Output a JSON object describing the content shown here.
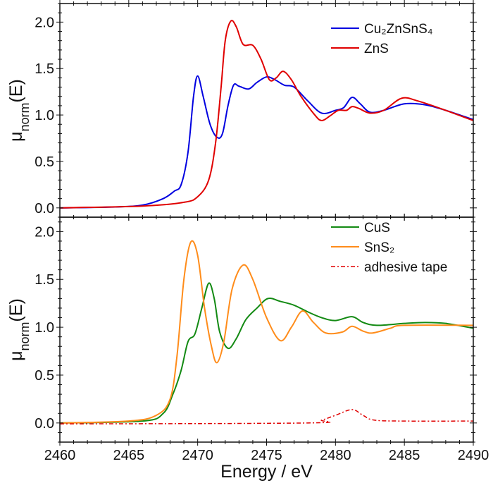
{
  "chart_data": [
    {
      "type": "line",
      "panel": "top",
      "ylabel": {
        "base": "μ",
        "sub": "norm",
        "rest": "(E)"
      },
      "xlim": [
        2460,
        2490
      ],
      "ylim": [
        -0.1,
        2.2
      ],
      "yticks": [
        0.0,
        0.5,
        1.0,
        1.5,
        2.0
      ],
      "ytick_labels": [
        "0.0",
        "0.5",
        "1.0",
        "1.5",
        "2.0"
      ],
      "legend_position": "top-right",
      "grid": false,
      "series": [
        {
          "name": "Cu₂ZnSnS₄",
          "color": "#0000e0",
          "dash": "solid",
          "x": [
            2460,
            2464,
            2466,
            2467.5,
            2468.3,
            2468.8,
            2469.3,
            2469.7,
            2470,
            2470.4,
            2470.9,
            2471.4,
            2471.8,
            2472.2,
            2472.6,
            2473,
            2473.7,
            2474.3,
            2475,
            2475.6,
            2476.3,
            2477,
            2478,
            2479,
            2480,
            2480.6,
            2481.2,
            2481.8,
            2482.5,
            2483.5,
            2485,
            2486.5,
            2488,
            2490
          ],
          "y": [
            0,
            0.01,
            0.03,
            0.1,
            0.18,
            0.25,
            0.6,
            1.2,
            1.42,
            1.2,
            0.9,
            0.76,
            0.8,
            1.1,
            1.32,
            1.31,
            1.28,
            1.35,
            1.41,
            1.38,
            1.32,
            1.3,
            1.15,
            1.02,
            1.05,
            1.08,
            1.19,
            1.12,
            1.03,
            1.05,
            1.12,
            1.11,
            1.05,
            0.95
          ]
        },
        {
          "name": "ZnS",
          "color": "#e00000",
          "dash": "solid",
          "x": [
            2460,
            2466,
            2469,
            2470,
            2470.8,
            2471.3,
            2471.7,
            2472,
            2472.4,
            2472.8,
            2473.3,
            2474,
            2474.6,
            2475.2,
            2475.7,
            2476.2,
            2476.8,
            2477.5,
            2478.5,
            2479,
            2479.6,
            2480.2,
            2480.8,
            2481.2,
            2481.7,
            2482.5,
            2483.5,
            2484.8,
            2486,
            2488,
            2490
          ],
          "y": [
            0,
            0.02,
            0.06,
            0.12,
            0.3,
            0.7,
            1.3,
            1.8,
            2.01,
            1.95,
            1.76,
            1.75,
            1.6,
            1.38,
            1.4,
            1.47,
            1.38,
            1.2,
            1.0,
            0.94,
            0.99,
            1.05,
            1.05,
            1.09,
            1.07,
            1.02,
            1.05,
            1.18,
            1.15,
            1.05,
            0.94
          ]
        }
      ]
    },
    {
      "type": "line",
      "panel": "bottom",
      "xlabel": "Energy / eV",
      "ylabel": {
        "base": "μ",
        "sub": "norm",
        "rest": "(E)"
      },
      "xlim": [
        2460,
        2490
      ],
      "ylim": [
        -0.2,
        2.15
      ],
      "xticks": [
        2460,
        2465,
        2470,
        2475,
        2480,
        2485,
        2490
      ],
      "xtick_labels": [
        "2460",
        "2465",
        "2470",
        "2475",
        "2480",
        "2485",
        "2490"
      ],
      "yticks": [
        0.0,
        0.5,
        1.0,
        1.5,
        2.0
      ],
      "ytick_labels": [
        "0.0",
        "0.5",
        "1.0",
        "1.5",
        "2.0"
      ],
      "legend_position": "top-right",
      "grid": false,
      "series": [
        {
          "name": "CuS",
          "color": "#138a13",
          "dash": "solid",
          "x": [
            2460,
            2466,
            2467.5,
            2468.2,
            2468.8,
            2469.3,
            2469.8,
            2470.3,
            2470.8,
            2471.2,
            2471.6,
            2472.2,
            2472.8,
            2473.5,
            2474.3,
            2475.1,
            2476,
            2477,
            2478,
            2479,
            2480,
            2481.2,
            2482,
            2483,
            2485,
            2486.5,
            2488,
            2490
          ],
          "y": [
            0,
            0.02,
            0.1,
            0.3,
            0.55,
            0.85,
            0.93,
            1.2,
            1.46,
            1.3,
            0.95,
            0.78,
            0.88,
            1.08,
            1.2,
            1.3,
            1.27,
            1.23,
            1.16,
            1.1,
            1.07,
            1.11,
            1.05,
            1.02,
            1.04,
            1.05,
            1.04,
            0.99
          ]
        },
        {
          "name": "SnS₂",
          "color": "#ff8c1a",
          "dash": "solid",
          "x": [
            2460,
            2465,
            2467,
            2468,
            2468.5,
            2469,
            2469.5,
            2470,
            2470.5,
            2471,
            2471.4,
            2471.9,
            2472.5,
            2473.3,
            2474,
            2475,
            2476,
            2476.8,
            2477.6,
            2478.4,
            2479.3,
            2480.5,
            2481.2,
            2482,
            2482.7,
            2484,
            2485,
            2490
          ],
          "y": [
            0,
            0.02,
            0.08,
            0.25,
            0.7,
            1.5,
            1.89,
            1.75,
            1.2,
            0.8,
            0.63,
            0.85,
            1.4,
            1.65,
            1.5,
            1.1,
            0.86,
            1.0,
            1.17,
            1.05,
            0.94,
            0.95,
            1.01,
            0.96,
            0.94,
            0.99,
            1.02,
            1.02
          ]
        },
        {
          "name": "adhesive tape",
          "color": "#e00000",
          "dash": "dash-dot",
          "x": [
            2460,
            2478,
            2479,
            2480,
            2481.2,
            2482,
            2482.8,
            2485,
            2490
          ],
          "y": [
            -0.01,
            0,
            0.03,
            0.08,
            0.14,
            0.08,
            0.03,
            0.02,
            0.02
          ]
        }
      ]
    }
  ]
}
